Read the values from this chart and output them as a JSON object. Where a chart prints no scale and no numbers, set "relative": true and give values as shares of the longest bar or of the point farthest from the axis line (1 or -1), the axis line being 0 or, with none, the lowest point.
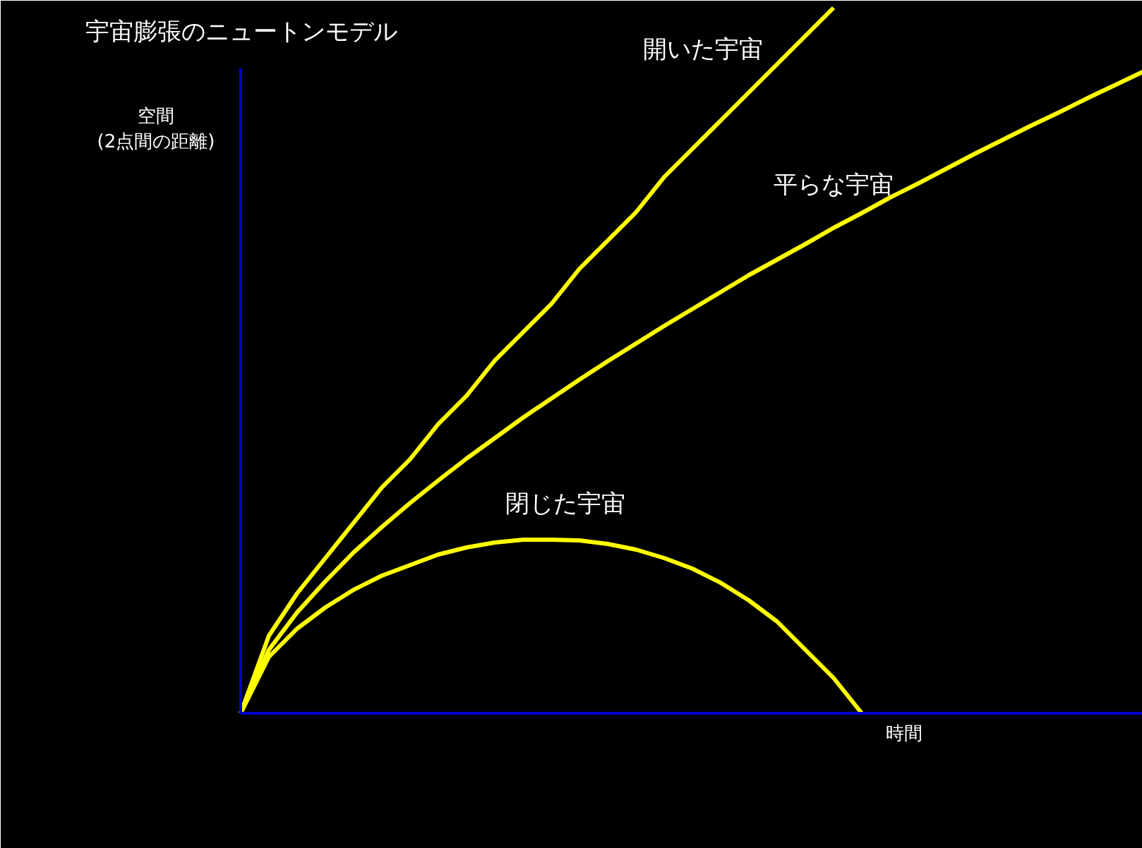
{
  "chart_data": {
    "type": "line",
    "relative": true,
    "title": "宇宙膨張のニュートンモデル",
    "xlabel": "時間",
    "ylabel": "空間\n(2点間の距離)",
    "categories": [
      null,
      null,
      null,
      null,
      null,
      null,
      null,
      null,
      null,
      null,
      null,
      null,
      null,
      null,
      null,
      null,
      null,
      null,
      null,
      null,
      null,
      null,
      null,
      null,
      null,
      null,
      null,
      null,
      null,
      null,
      null,
      null,
      null
    ],
    "line_style": "solid",
    "series": [
      {
        "name": "開いた宇宙",
        "color": "#ffff00",
        "values": [
          0,
          0.11,
          0.17,
          0.22,
          0.27,
          0.32,
          0.36,
          0.41,
          0.45,
          0.5,
          0.54,
          0.58,
          0.63,
          0.67,
          0.71,
          0.76,
          0.8,
          0.84,
          0.88,
          0.92,
          0.96,
          1,
          null,
          null,
          null,
          null,
          null,
          null,
          null,
          null,
          null,
          null,
          null
        ]
      },
      {
        "name": "平らな宇宙",
        "color": "#ffff00",
        "values": [
          0,
          0.09,
          0.143,
          0.187,
          0.228,
          0.264,
          0.298,
          0.33,
          0.361,
          0.39,
          0.419,
          0.446,
          0.473,
          0.499,
          0.524,
          0.549,
          0.573,
          0.597,
          0.621,
          0.643,
          0.665,
          0.688,
          0.709,
          0.731,
          0.751,
          0.772,
          0.793,
          0.813,
          0.833,
          0.852,
          0.872,
          0.891,
          0.91
        ]
      },
      {
        "name": "閉じた宇宙",
        "color": "#ffff00",
        "values": [
          0,
          0.08,
          0.12,
          0.15,
          0.175,
          0.195,
          0.21,
          0.225,
          0.235,
          0.242,
          0.246,
          0.246,
          0.245,
          0.24,
          0.232,
          0.22,
          0.205,
          0.185,
          0.16,
          0.13,
          0.09,
          0.05,
          0,
          null,
          null,
          null,
          null,
          null,
          null,
          null,
          null,
          null,
          null
        ]
      }
    ]
  }
}
